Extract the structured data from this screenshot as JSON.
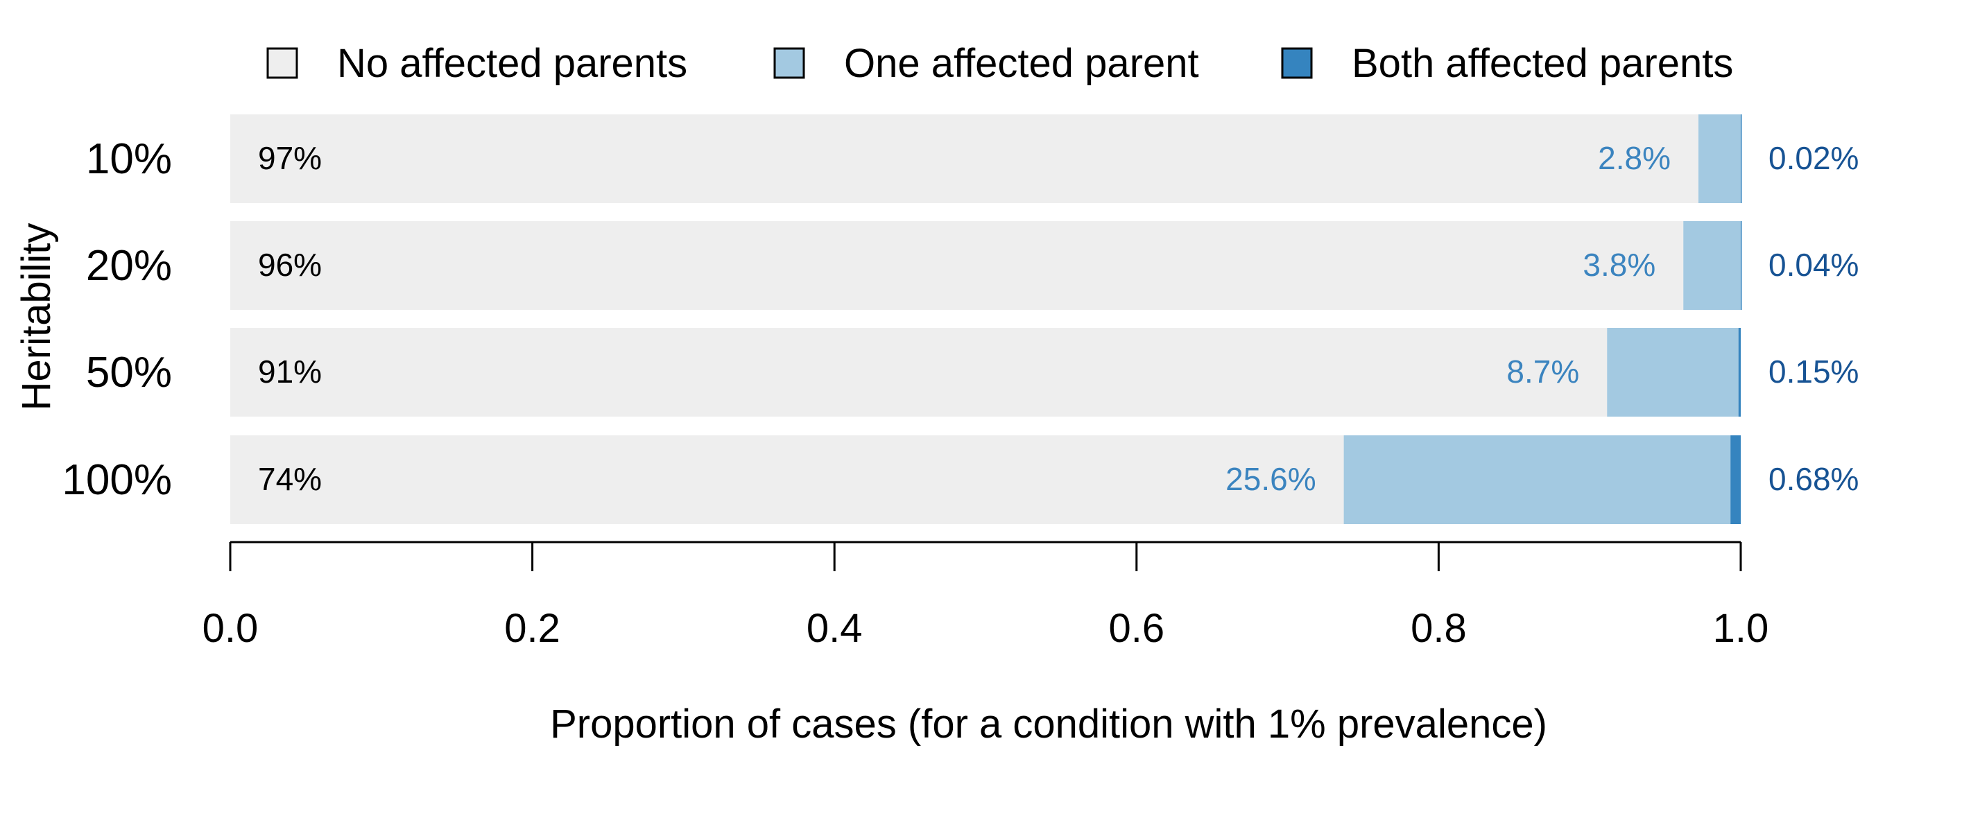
{
  "chart_data": {
    "type": "bar",
    "orientation": "horizontal",
    "stacked": true,
    "title": "",
    "xlabel": "Proportion of cases (for a condition with 1% prevalence)",
    "ylabel": "Heritability",
    "xlim": [
      0.0,
      1.0
    ],
    "x_ticks": [
      "0.0",
      "0.2",
      "0.4",
      "0.6",
      "0.8",
      "1.0"
    ],
    "categories": [
      "10%",
      "20%",
      "50%",
      "100%"
    ],
    "series": [
      {
        "name": "No affected parents",
        "color": "#eeeeee",
        "values": [
          0.972,
          0.962,
          0.9115,
          0.7372
        ],
        "labels": [
          "97%",
          "96%",
          "91%",
          "74%"
        ],
        "label_color": "#000000"
      },
      {
        "name": "One affected parent",
        "color": "#a3c9e1",
        "values": [
          0.028,
          0.038,
          0.087,
          0.256
        ],
        "labels": [
          "2.8%",
          "3.8%",
          "8.7%",
          "25.6%"
        ],
        "label_color": "#3b84bf"
      },
      {
        "name": "Both affected parents",
        "color": "#3584bf",
        "values": [
          0.0002,
          0.0004,
          0.0015,
          0.0068
        ],
        "labels": [
          "0.02%",
          "0.04%",
          "0.15%",
          "0.68%"
        ],
        "label_color": "#175394"
      }
    ],
    "legend": {
      "placement": "top",
      "entries": [
        "No affected parents",
        "One affected parent",
        "Both affected parents"
      ]
    },
    "grid": false
  }
}
